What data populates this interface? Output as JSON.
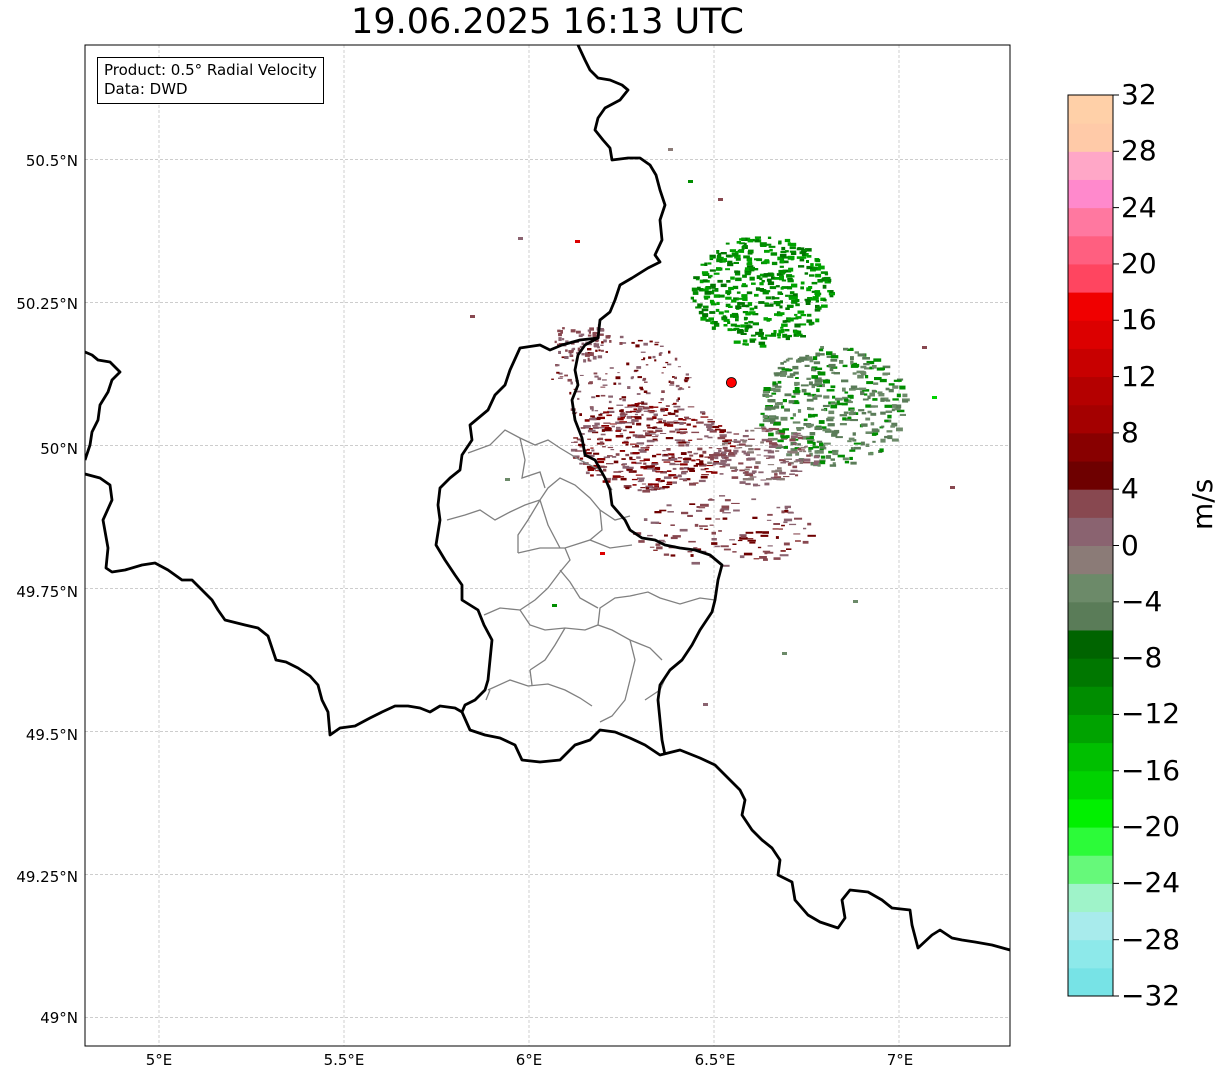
{
  "title": "19.06.2025 16:13 UTC",
  "info_box": {
    "product": "Product: 0.5° Radial Velocity",
    "data_source": "Data: DWD"
  },
  "map": {
    "extent": {
      "lon_min": 4.8,
      "lon_max": 7.3,
      "lat_min": 48.95,
      "lat_max": 50.7
    },
    "lat_ticks": [
      {
        "value": 50.5,
        "label": "50.5°N"
      },
      {
        "value": 50.25,
        "label": "50.25°N"
      },
      {
        "value": 50.0,
        "label": "50°N"
      },
      {
        "value": 49.75,
        "label": "49.75°N"
      },
      {
        "value": 49.5,
        "label": "49.5°N"
      },
      {
        "value": 49.25,
        "label": "49.25°N"
      },
      {
        "value": 49.0,
        "label": "49°N"
      }
    ],
    "lon_ticks": [
      {
        "value": 5.0,
        "label": "5°E"
      },
      {
        "value": 5.5,
        "label": "5.5°E"
      },
      {
        "value": 6.0,
        "label": "6°E"
      },
      {
        "value": 6.5,
        "label": "6.5°E"
      },
      {
        "value": 7.0,
        "label": "7°E"
      }
    ],
    "gridlines": true,
    "radar_site": {
      "lon": 6.547,
      "lat": 50.11,
      "color": "#ff0000"
    }
  },
  "colorbar": {
    "unit": "m/s",
    "min": -32,
    "max": 32,
    "step": 2,
    "tick_labels": [
      "32",
      "28",
      "24",
      "20",
      "16",
      "12",
      "8",
      "4",
      "0",
      "−04",
      "−8",
      "−12",
      "−16",
      "−20",
      "−24",
      "−28",
      "−32"
    ],
    "colors_bottom_to_top": [
      "#77e3e6",
      "#8de9ea",
      "#a8ebec",
      "#9ff3c9",
      "#66f97a",
      "#2cfb39",
      "#01f000",
      "#00d300",
      "#00bf00",
      "#00a300",
      "#008d00",
      "#007700",
      "#006400",
      "#5a7c58",
      "#6c8a69",
      "#8b7b77",
      "#8a6370",
      "#884850",
      "#6e0000",
      "#880000",
      "#a40000",
      "#b40000",
      "#c80000",
      "#dc0000",
      "#f00000",
      "#ff4560",
      "#ff5f80",
      "#ff78a0",
      "#ff89cc",
      "#ffa7c7",
      "#ffcaa8",
      "#ffd0a8"
    ]
  }
}
